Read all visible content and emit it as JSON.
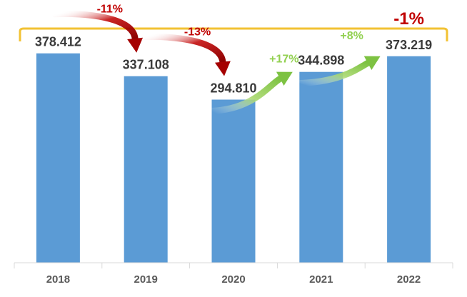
{
  "chart_data": {
    "type": "bar",
    "categories": [
      "2018",
      "2019",
      "2020",
      "2021",
      "2022"
    ],
    "values": [
      378412,
      337108,
      294810,
      344898,
      373219
    ],
    "value_labels": [
      "378.412",
      "337.108",
      "294.810",
      "344.898",
      "373.219"
    ],
    "ylim": [
      0,
      400000
    ],
    "grid": false,
    "bar_color": "#5B9BD5",
    "annotations": [
      {
        "from": "2018",
        "to": "2019",
        "label": "-11%",
        "color": "#C00000"
      },
      {
        "from": "2019",
        "to": "2020",
        "label": "-13%",
        "color": "#C00000"
      },
      {
        "from": "2020",
        "to": "2021",
        "label": "+17%",
        "color": "#92D050"
      },
      {
        "from": "2021",
        "to": "2022",
        "label": "+8%",
        "color": "#92D050"
      }
    ],
    "total_change": {
      "from": "2018",
      "to": "2022",
      "label": "-1%",
      "label_color": "#C00000",
      "bracket_color": "#F2C233"
    }
  }
}
